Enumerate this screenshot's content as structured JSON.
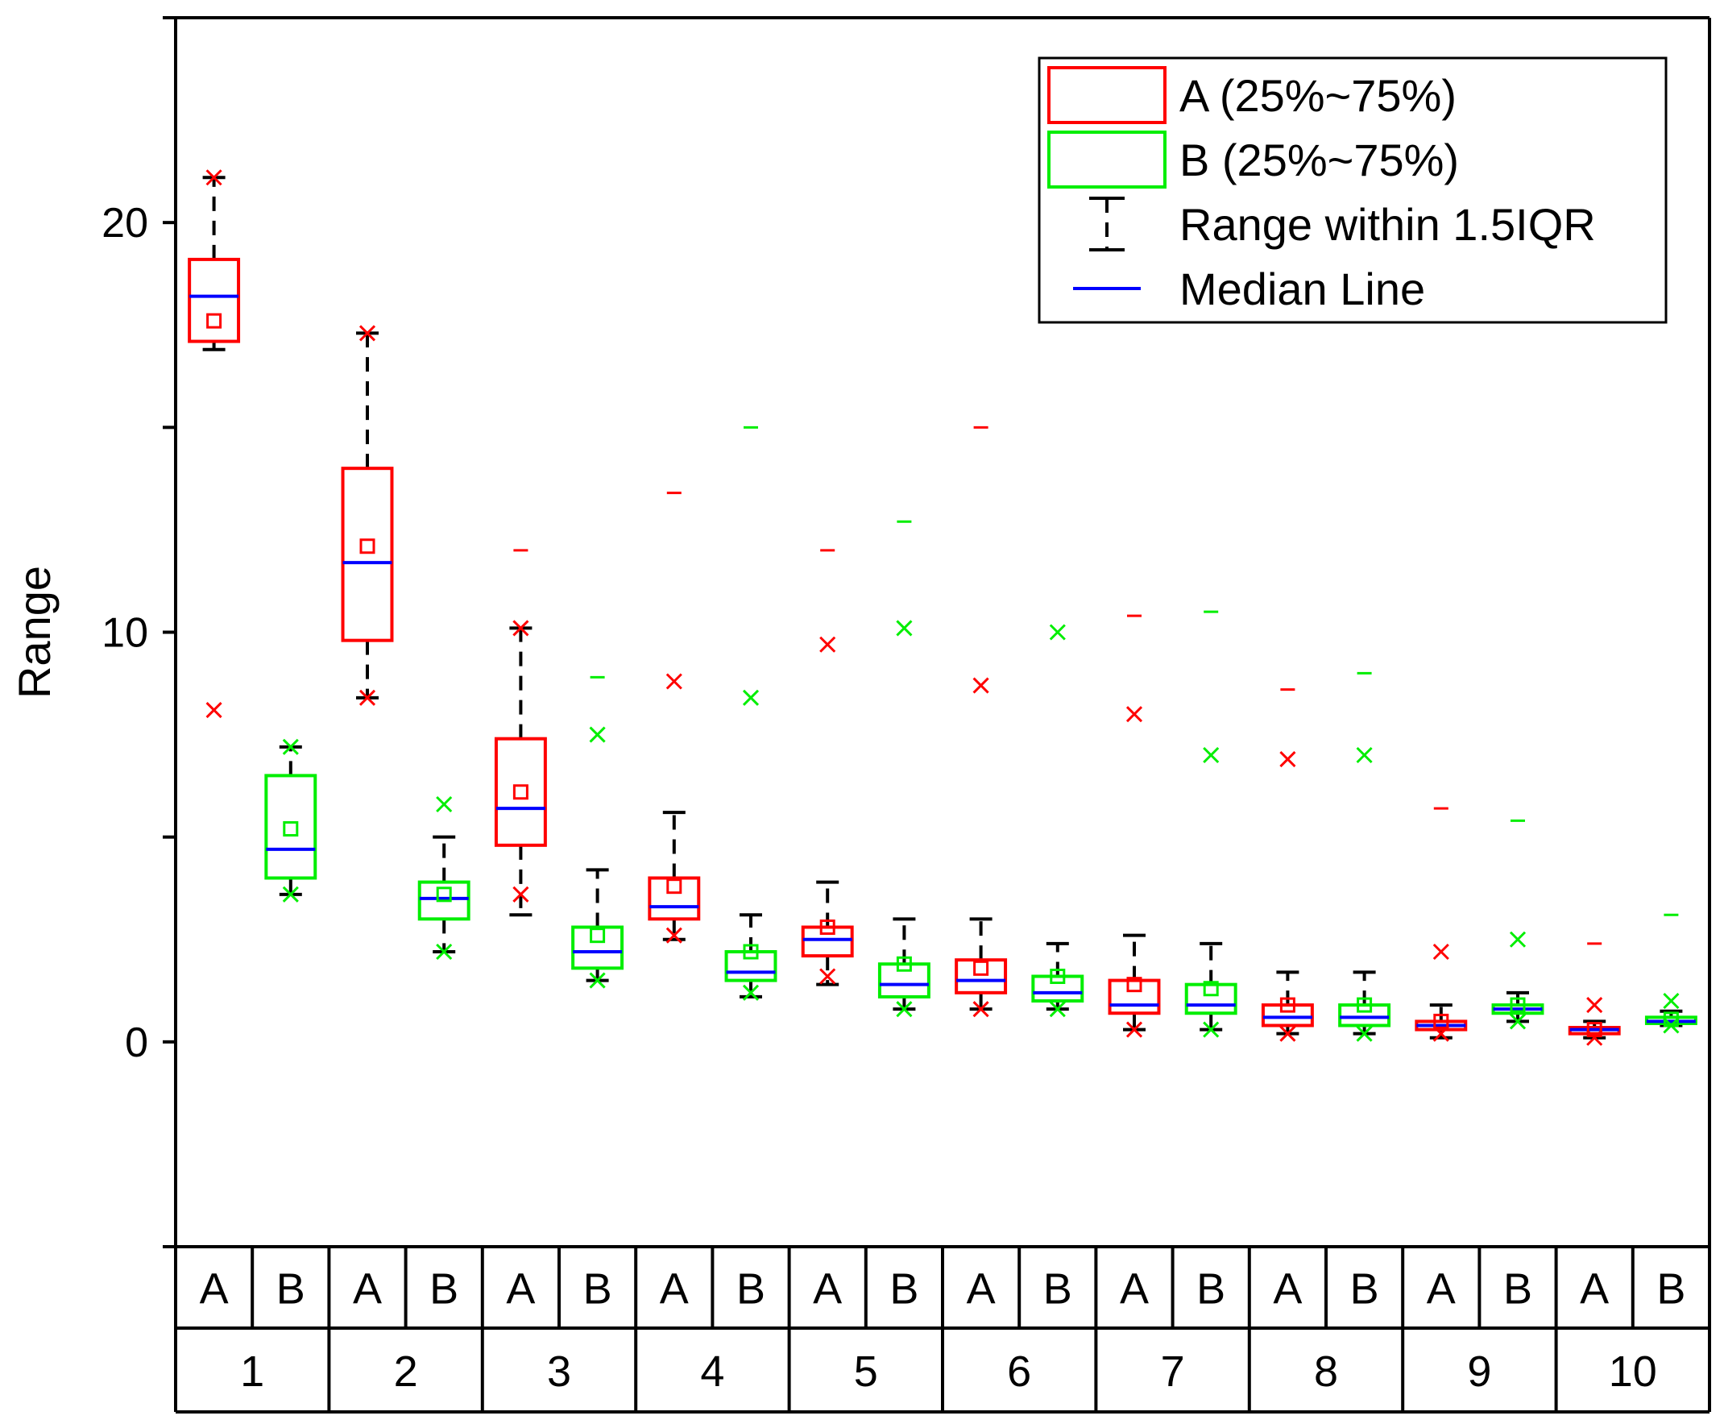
{
  "chart_data": {
    "type": "box",
    "title": "",
    "ylabel": "Range",
    "xlabel": "",
    "ylim": [
      -5,
      25
    ],
    "yticks": [
      0,
      10,
      20
    ],
    "y_minor_ticks": [
      -5,
      5,
      15,
      25
    ],
    "grid": false,
    "groups": [
      "1",
      "2",
      "3",
      "4",
      "5",
      "6",
      "7",
      "8",
      "9",
      "10"
    ],
    "subgroups": [
      "A",
      "B"
    ],
    "colors": {
      "A": "#ff0000",
      "B": "#00ee00",
      "median": "#0000ff",
      "whisker": "#000000"
    },
    "legend": {
      "position": "top-right",
      "entries": [
        {
          "name": "A (25%~75%)",
          "kind": "box-A"
        },
        {
          "name": "B (25%~75%)",
          "kind": "box-B"
        },
        {
          "name": "Range within 1.5IQR",
          "kind": "whisker"
        },
        {
          "name": "Median Line",
          "kind": "median"
        }
      ]
    },
    "series": [
      {
        "group": "1",
        "name": "A",
        "q1": 17.1,
        "q3": 19.1,
        "median": 18.2,
        "mean": 17.6,
        "whisker_low": 16.9,
        "whisker_high": 21.1,
        "min": 8.1,
        "max": 21.1,
        "p1": null,
        "p99": null
      },
      {
        "group": "1",
        "name": "B",
        "q1": 4.0,
        "q3": 6.5,
        "median": 4.7,
        "mean": 5.2,
        "whisker_low": 3.6,
        "whisker_high": 7.2,
        "min": 3.6,
        "max": 7.2,
        "p1": null,
        "p99": null
      },
      {
        "group": "2",
        "name": "A",
        "q1": 9.8,
        "q3": 14.0,
        "median": 11.7,
        "mean": 12.1,
        "whisker_low": 8.4,
        "whisker_high": 17.3,
        "min": 8.4,
        "max": 17.3,
        "p1": null,
        "p99": null
      },
      {
        "group": "2",
        "name": "B",
        "q1": 3.0,
        "q3": 3.9,
        "median": 3.5,
        "mean": 3.6,
        "whisker_low": 2.2,
        "whisker_high": 5.0,
        "min": 2.2,
        "max": 5.8,
        "p1": null,
        "p99": null
      },
      {
        "group": "3",
        "name": "A",
        "q1": 4.8,
        "q3": 7.4,
        "median": 5.7,
        "mean": 6.1,
        "whisker_low": 3.1,
        "whisker_high": 10.1,
        "min": 3.6,
        "max": 10.1,
        "p1": null,
        "p99": 12.0
      },
      {
        "group": "3",
        "name": "B",
        "q1": 1.8,
        "q3": 2.8,
        "median": 2.2,
        "mean": 2.6,
        "whisker_low": 1.5,
        "whisker_high": 4.2,
        "min": 1.5,
        "max": 7.5,
        "p1": null,
        "p99": 8.9
      },
      {
        "group": "4",
        "name": "A",
        "q1": 3.0,
        "q3": 4.0,
        "median": 3.3,
        "mean": 3.8,
        "whisker_low": 2.5,
        "whisker_high": 5.6,
        "min": 2.6,
        "max": 8.8,
        "p1": null,
        "p99": 13.4
      },
      {
        "group": "4",
        "name": "B",
        "q1": 1.5,
        "q3": 2.2,
        "median": 1.7,
        "mean": 2.2,
        "whisker_low": 1.1,
        "whisker_high": 3.1,
        "min": 1.2,
        "max": 8.4,
        "p1": null,
        "p99": 15.0
      },
      {
        "group": "5",
        "name": "A",
        "q1": 2.1,
        "q3": 2.8,
        "median": 2.5,
        "mean": 2.8,
        "whisker_low": 1.4,
        "whisker_high": 3.9,
        "min": 1.6,
        "max": 9.7,
        "p1": null,
        "p99": 12.0
      },
      {
        "group": "5",
        "name": "B",
        "q1": 1.1,
        "q3": 1.9,
        "median": 1.4,
        "mean": 1.9,
        "whisker_low": 0.8,
        "whisker_high": 3.0,
        "min": 0.8,
        "max": 10.1,
        "p1": null,
        "p99": 12.7
      },
      {
        "group": "6",
        "name": "A",
        "q1": 1.2,
        "q3": 2.0,
        "median": 1.5,
        "mean": 1.8,
        "whisker_low": 0.8,
        "whisker_high": 3.0,
        "min": 0.8,
        "max": 8.7,
        "p1": null,
        "p99": 15.0
      },
      {
        "group": "6",
        "name": "B",
        "q1": 1.0,
        "q3": 1.6,
        "median": 1.2,
        "mean": 1.6,
        "whisker_low": 0.8,
        "whisker_high": 2.4,
        "min": 0.8,
        "max": 10.0,
        "p1": null,
        "p99": null
      },
      {
        "group": "7",
        "name": "A",
        "q1": 0.7,
        "q3": 1.5,
        "median": 0.9,
        "mean": 1.4,
        "whisker_low": 0.3,
        "whisker_high": 2.6,
        "min": 0.3,
        "max": 8.0,
        "p1": null,
        "p99": 10.4
      },
      {
        "group": "7",
        "name": "B",
        "q1": 0.7,
        "q3": 1.4,
        "median": 0.9,
        "mean": 1.3,
        "whisker_low": 0.3,
        "whisker_high": 2.4,
        "min": 0.3,
        "max": 7.0,
        "p1": null,
        "p99": 10.5
      },
      {
        "group": "8",
        "name": "A",
        "q1": 0.4,
        "q3": 0.9,
        "median": 0.6,
        "mean": 0.9,
        "whisker_low": 0.2,
        "whisker_high": 1.7,
        "min": 0.2,
        "max": 6.9,
        "p1": null,
        "p99": 8.6
      },
      {
        "group": "8",
        "name": "B",
        "q1": 0.4,
        "q3": 0.9,
        "median": 0.6,
        "mean": 0.9,
        "whisker_low": 0.2,
        "whisker_high": 1.7,
        "min": 0.2,
        "max": 7.0,
        "p1": null,
        "p99": 9.0
      },
      {
        "group": "9",
        "name": "A",
        "q1": 0.3,
        "q3": 0.5,
        "median": 0.4,
        "mean": 0.5,
        "whisker_low": 0.1,
        "whisker_high": 0.9,
        "min": 0.2,
        "max": 2.2,
        "p1": null,
        "p99": 5.7
      },
      {
        "group": "9",
        "name": "B",
        "q1": 0.7,
        "q3": 0.9,
        "median": 0.8,
        "mean": 0.9,
        "whisker_low": 0.5,
        "whisker_high": 1.2,
        "min": 0.5,
        "max": 2.5,
        "p1": null,
        "p99": 5.4
      },
      {
        "group": "10",
        "name": "A",
        "q1": 0.2,
        "q3": 0.35,
        "median": 0.3,
        "mean": 0.3,
        "whisker_low": 0.1,
        "whisker_high": 0.5,
        "min": 0.1,
        "max": 0.9,
        "p1": null,
        "p99": 2.4
      },
      {
        "group": "10",
        "name": "B",
        "q1": 0.45,
        "q3": 0.6,
        "median": 0.5,
        "mean": 0.55,
        "whisker_low": 0.4,
        "whisker_high": 0.75,
        "min": 0.4,
        "max": 1.0,
        "p1": null,
        "p99": 3.1
      }
    ]
  }
}
